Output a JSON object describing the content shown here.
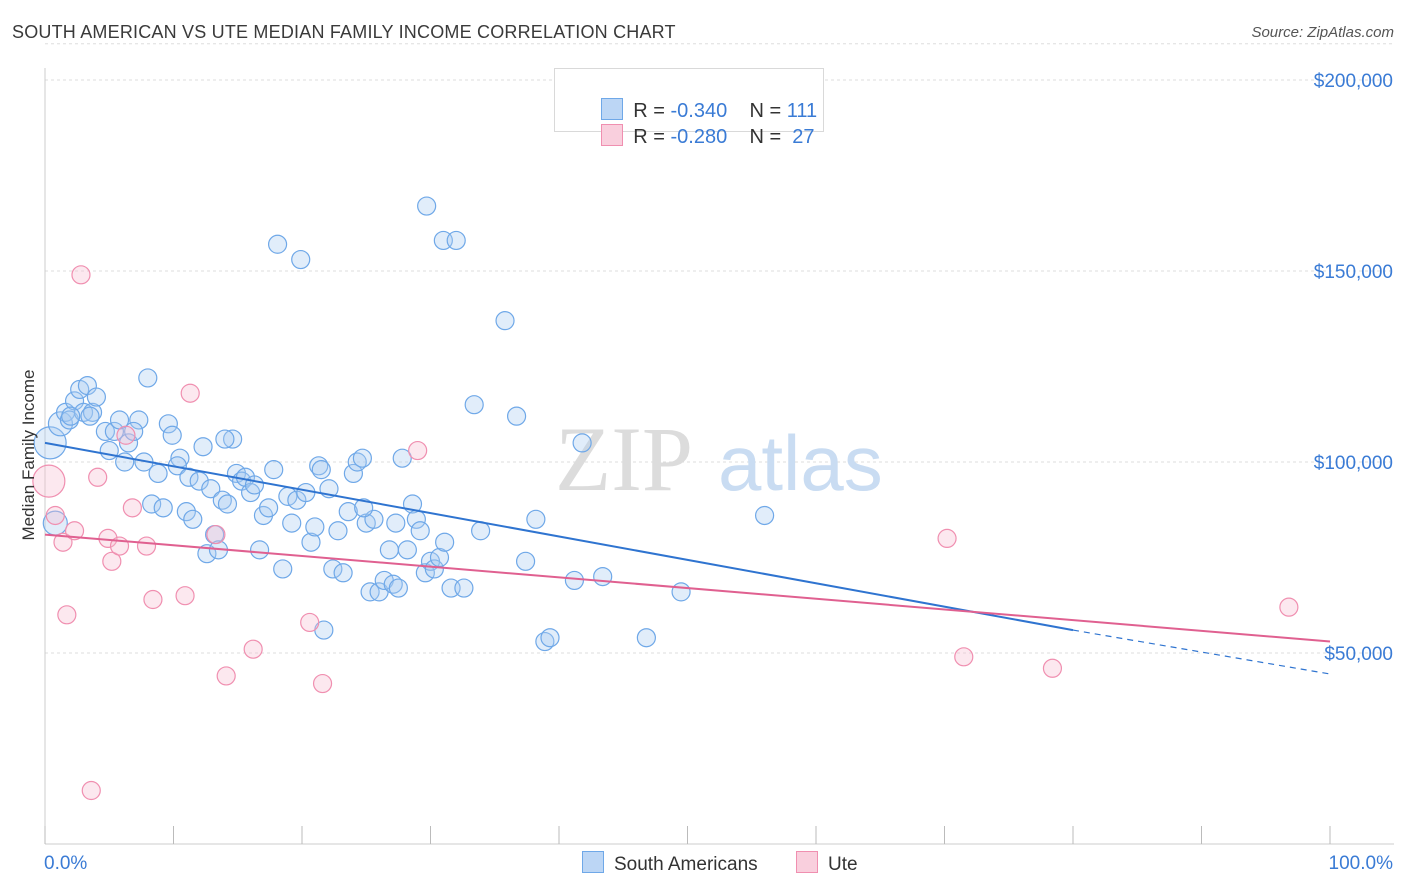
{
  "header": {
    "title": "SOUTH AMERICAN VS UTE MEDIAN FAMILY INCOME CORRELATION CHART",
    "source": "Source: ZipAtlas.com"
  },
  "watermark": {
    "zip": "ZIP",
    "atlas": "atlas"
  },
  "legend": {
    "rows": [
      {
        "r_label": "R = ",
        "r_value": "-0.340",
        "n_label": "N = ",
        "n_value": "111",
        "color": "#6fa8e8"
      },
      {
        "r_label": "R = ",
        "r_value": "-0.280",
        "n_label": "N = ",
        "n_value": " 27",
        "color": "#f08fb0"
      }
    ]
  },
  "bottom_legend": {
    "south_americans": "South Americans",
    "ute": "Ute"
  },
  "chart_data": {
    "type": "scatter",
    "title": "SOUTH AMERICAN VS UTE MEDIAN FAMILY INCOME CORRELATION CHART",
    "xlabel": "",
    "ylabel": "Median Family Income",
    "xlim": [
      0,
      100
    ],
    "ylim": [
      0,
      210000
    ],
    "x_tick_labels": [
      "0.0%",
      "100.0%"
    ],
    "y_ticks": [
      50000,
      100000,
      150000,
      200000
    ],
    "y_tick_labels": [
      "$50,000",
      "$100,000",
      "$150,000",
      "$200,000"
    ],
    "grid": true,
    "legend_position": "top-center",
    "series": [
      {
        "name": "South Americans",
        "color": "#6fa8e8",
        "line_color": "#2f74d0",
        "trend": {
          "x": [
            0,
            80
          ],
          "y": [
            105000,
            56000
          ],
          "dashed_x": [
            80,
            100
          ],
          "dashed_y": [
            56000,
            44500
          ]
        },
        "points": [
          [
            0.4,
            105000,
            3
          ],
          [
            0.8,
            84000,
            2
          ],
          [
            1.2,
            110000,
            2
          ],
          [
            1.6,
            113000,
            1
          ],
          [
            1.9,
            111000,
            1
          ],
          [
            2.3,
            116000,
            1
          ],
          [
            2.7,
            119000,
            1
          ],
          [
            3.0,
            113000,
            1
          ],
          [
            3.3,
            120000,
            1
          ],
          [
            3.7,
            113000,
            1
          ],
          [
            4.0,
            117000,
            1
          ],
          [
            4.7,
            108000,
            1
          ],
          [
            5.0,
            103000,
            1
          ],
          [
            5.4,
            108000,
            1
          ],
          [
            5.8,
            111000,
            1
          ],
          [
            6.5,
            105000,
            1
          ],
          [
            6.2,
            100000,
            1
          ],
          [
            7.3,
            111000,
            1
          ],
          [
            7.7,
            100000,
            1
          ],
          [
            8.0,
            122000,
            1
          ],
          [
            8.3,
            89000,
            1
          ],
          [
            8.8,
            97000,
            1
          ],
          [
            9.2,
            88000,
            1
          ],
          [
            9.6,
            110000,
            1
          ],
          [
            9.9,
            107000,
            1
          ],
          [
            10.5,
            101000,
            1
          ],
          [
            10.3,
            99000,
            1
          ],
          [
            11.0,
            87000,
            1
          ],
          [
            11.2,
            96000,
            1
          ],
          [
            11.5,
            85000,
            1
          ],
          [
            12.0,
            95000,
            1
          ],
          [
            12.3,
            104000,
            1
          ],
          [
            12.6,
            76000,
            1
          ],
          [
            12.9,
            93000,
            1
          ],
          [
            13.2,
            81000,
            1
          ],
          [
            13.5,
            77000,
            1
          ],
          [
            13.8,
            90000,
            1
          ],
          [
            14.2,
            89000,
            1
          ],
          [
            14.6,
            106000,
            1
          ],
          [
            14.9,
            97000,
            1
          ],
          [
            15.3,
            95000,
            1
          ],
          [
            15.6,
            96000,
            1
          ],
          [
            16.0,
            92000,
            1
          ],
          [
            16.3,
            94000,
            1
          ],
          [
            16.7,
            77000,
            1
          ],
          [
            17.0,
            86000,
            1
          ],
          [
            17.4,
            88000,
            1
          ],
          [
            17.8,
            98000,
            1
          ],
          [
            18.1,
            157000,
            1
          ],
          [
            18.5,
            72000,
            1
          ],
          [
            18.9,
            91000,
            1
          ],
          [
            19.2,
            84000,
            1
          ],
          [
            19.6,
            90000,
            1
          ],
          [
            19.9,
            153000,
            1
          ],
          [
            20.3,
            92000,
            1
          ],
          [
            20.7,
            79000,
            1
          ],
          [
            21.0,
            83000,
            1
          ],
          [
            21.3,
            99000,
            1
          ],
          [
            21.7,
            56000,
            1
          ],
          [
            22.1,
            93000,
            1
          ],
          [
            22.4,
            72000,
            1
          ],
          [
            22.8,
            82000,
            1
          ],
          [
            23.2,
            71000,
            1
          ],
          [
            23.6,
            87000,
            1
          ],
          [
            24.0,
            97000,
            1
          ],
          [
            24.3,
            100000,
            1
          ],
          [
            24.7,
            101000,
            1
          ],
          [
            25.0,
            84000,
            1
          ],
          [
            25.3,
            66000,
            1
          ],
          [
            25.6,
            85000,
            1
          ],
          [
            26.0,
            66000,
            1
          ],
          [
            26.4,
            69000,
            1
          ],
          [
            26.8,
            77000,
            1
          ],
          [
            27.1,
            68000,
            1
          ],
          [
            27.5,
            67000,
            1
          ],
          [
            27.8,
            101000,
            1
          ],
          [
            28.2,
            77000,
            1
          ],
          [
            28.6,
            89000,
            1
          ],
          [
            28.9,
            85000,
            1
          ],
          [
            29.2,
            82000,
            1
          ],
          [
            29.6,
            71000,
            1
          ],
          [
            30.0,
            74000,
            1
          ],
          [
            30.3,
            72000,
            1
          ],
          [
            30.7,
            75000,
            1
          ],
          [
            31.1,
            79000,
            1
          ],
          [
            29.7,
            167000,
            1
          ],
          [
            31.6,
            67000,
            1
          ],
          [
            31.0,
            158000,
            1
          ],
          [
            32.0,
            158000,
            1
          ],
          [
            32.6,
            67000,
            1
          ],
          [
            33.4,
            115000,
            1
          ],
          [
            33.9,
            82000,
            1
          ],
          [
            35.8,
            137000,
            1
          ],
          [
            36.7,
            112000,
            1
          ],
          [
            37.4,
            74000,
            1
          ],
          [
            38.2,
            85000,
            1
          ],
          [
            38.9,
            53000,
            1
          ],
          [
            39.3,
            54000,
            1
          ],
          [
            41.8,
            105000,
            1
          ],
          [
            41.2,
            69000,
            1
          ],
          [
            43.4,
            70000,
            1
          ],
          [
            46.8,
            54000,
            1
          ],
          [
            49.5,
            66000,
            1
          ],
          [
            56.0,
            86000,
            1
          ],
          [
            3.5,
            112000,
            1
          ],
          [
            2.0,
            112000,
            1
          ],
          [
            6.9,
            108000,
            1
          ],
          [
            14.0,
            106000,
            1
          ],
          [
            21.5,
            98000,
            1
          ],
          [
            24.8,
            88000,
            1
          ],
          [
            27.3,
            84000,
            1
          ]
        ]
      },
      {
        "name": "Ute",
        "color": "#f08fb0",
        "line_color": "#e06090",
        "trend": {
          "x": [
            0,
            100
          ],
          "y": [
            81000,
            53000
          ]
        },
        "points": [
          [
            0.3,
            95000,
            3
          ],
          [
            0.8,
            86000,
            1
          ],
          [
            1.4,
            79000,
            1
          ],
          [
            1.7,
            60000,
            1
          ],
          [
            2.3,
            82000,
            1
          ],
          [
            2.8,
            149000,
            1
          ],
          [
            3.6,
            14000,
            1
          ],
          [
            4.1,
            96000,
            1
          ],
          [
            4.9,
            80000,
            1
          ],
          [
            5.2,
            74000,
            1
          ],
          [
            5.8,
            78000,
            1
          ],
          [
            6.3,
            107000,
            1
          ],
          [
            6.8,
            88000,
            1
          ],
          [
            7.9,
            78000,
            1
          ],
          [
            8.4,
            64000,
            1
          ],
          [
            10.9,
            65000,
            1
          ],
          [
            11.3,
            118000,
            1
          ],
          [
            13.3,
            81000,
            1
          ],
          [
            14.1,
            44000,
            1
          ],
          [
            16.2,
            51000,
            1
          ],
          [
            20.6,
            58000,
            1
          ],
          [
            21.6,
            42000,
            1
          ],
          [
            29.0,
            103000,
            1
          ],
          [
            70.2,
            80000,
            1
          ],
          [
            71.5,
            49000,
            1
          ],
          [
            78.4,
            46000,
            1
          ],
          [
            96.8,
            62000,
            1
          ]
        ]
      }
    ]
  }
}
